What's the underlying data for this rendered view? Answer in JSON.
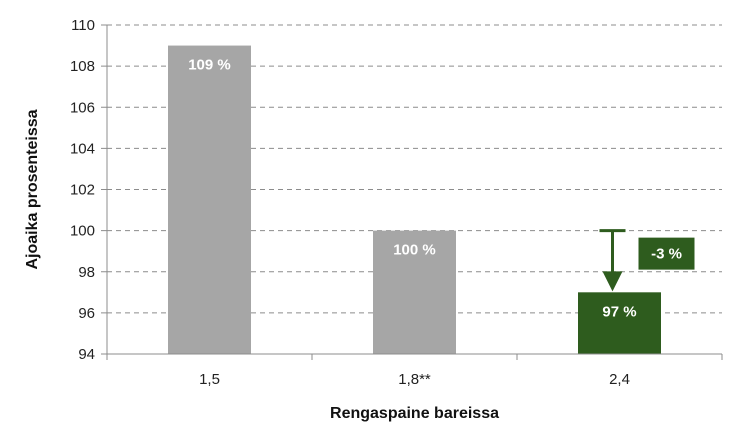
{
  "chart_data": {
    "type": "bar",
    "categories": [
      "1,5",
      "1,8**",
      "2,4"
    ],
    "values": [
      109,
      100,
      97
    ],
    "data_labels": [
      "109 %",
      "100 %",
      "97 %"
    ],
    "bar_colors": [
      "#a6a6a6",
      "#a6a6a6",
      "#2e5c1e"
    ],
    "xlabel": "Rengaspaine bareissa",
    "ylabel": "Ajoaika prosenteissa",
    "ylim": [
      94,
      110
    ],
    "yticks": [
      94,
      96,
      98,
      100,
      102,
      104,
      106,
      108,
      110
    ],
    "grid": true,
    "annotation": {
      "text": "-3 %",
      "from_value": 100,
      "to_value": 97,
      "category": "2,4",
      "color": "#2e5c1e"
    }
  }
}
